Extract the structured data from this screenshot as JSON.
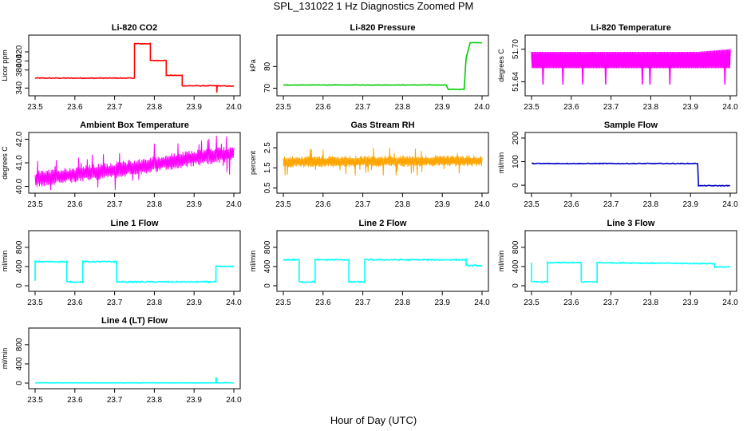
{
  "figure": {
    "title": "SPL_131022  1 Hz Diagnostics Zoomed PM",
    "xlabel": "Hour of Day (UTC)"
  },
  "chart_data": [
    {
      "type": "line",
      "title": "Li-820 CO2",
      "ylabel": "Licor ppm",
      "color": "#ff0000",
      "xlim": [
        23.5,
        24.0
      ],
      "ylim": [
        330,
        450
      ],
      "xticks": [
        "23.5",
        "23.6",
        "23.7",
        "23.8",
        "23.9",
        "24.0"
      ],
      "yticks": [
        "340",
        "380",
        "400",
        "420"
      ],
      "noise": 0.8,
      "series": [
        {
          "name": "CO2",
          "x": [
            23.5,
            23.75,
            23.75,
            23.79,
            23.79,
            23.83,
            23.83,
            23.87,
            23.87,
            23.957,
            23.957,
            23.958,
            23.96,
            24.0
          ],
          "y": [
            362,
            362,
            438,
            438,
            401,
            401,
            368,
            368,
            345,
            345,
            330,
            345,
            345,
            344
          ]
        }
      ]
    },
    {
      "type": "line",
      "title": "Li-820 Pressure",
      "ylabel": "kPa",
      "color": "#00cc00",
      "xlim": [
        23.5,
        24.0
      ],
      "ylim": [
        68,
        93
      ],
      "xticks": [
        "23.5",
        "23.6",
        "23.7",
        "23.8",
        "23.9",
        "24.0"
      ],
      "yticks": [
        "70",
        "80"
      ],
      "noise": 0.1,
      "series": [
        {
          "name": "Pressure",
          "x": [
            23.5,
            23.91,
            23.915,
            23.955,
            23.96,
            23.97,
            24.0
          ],
          "y": [
            71.5,
            71.5,
            69.5,
            69.5,
            84,
            91,
            91
          ]
        }
      ]
    },
    {
      "type": "line",
      "title": "Li-820 Temperature",
      "ylabel": "degrees C",
      "color": "#ff00ff",
      "xlim": [
        23.5,
        24.0
      ],
      "ylim": [
        51.62,
        51.72
      ],
      "xticks": [
        "23.5",
        "23.6",
        "23.7",
        "23.8",
        "23.9",
        "24.0"
      ],
      "yticks": [
        "51.64",
        "51.70"
      ],
      "noise": 0,
      "osc": [
        51.665,
        51.695
      ],
      "osc_points": 260,
      "series": [
        {
          "name": "Temp",
          "x": [
            23.5,
            23.91,
            23.92,
            24.0
          ],
          "y": [
            51.68,
            51.68,
            51.695,
            51.7
          ]
        }
      ]
    },
    {
      "type": "line",
      "title": "Ambient Box Temperature",
      "ylabel": "degrees C",
      "color": "#ff00ff",
      "xlim": [
        23.5,
        24.0
      ],
      "ylim": [
        39.85,
        42.15
      ],
      "xticks": [
        "23.5",
        "23.6",
        "23.7",
        "23.8",
        "23.9",
        "24.0"
      ],
      "yticks": [
        "40.0",
        "41.0",
        "42.0"
      ],
      "noise": 0.35,
      "dense": 320,
      "series": [
        {
          "name": "AmbientT",
          "x": [
            23.5,
            23.6,
            23.75,
            23.9,
            24.0
          ],
          "y": [
            40.3,
            40.5,
            40.8,
            41.2,
            41.4
          ]
        }
      ]
    },
    {
      "type": "line",
      "title": "Gas Stream RH",
      "ylabel": "percent",
      "color": "#ffa500",
      "xlim": [
        23.5,
        24.0
      ],
      "ylim": [
        0.4,
        3.1
      ],
      "xticks": [
        "23.5",
        "23.6",
        "23.7",
        "23.8",
        "23.9",
        "24.0"
      ],
      "yticks": [
        "0.5",
        "1.5",
        "2.5"
      ],
      "noise": 0.28,
      "dense": 340,
      "series": [
        {
          "name": "RH",
          "x": [
            23.5,
            24.0
          ],
          "y": [
            1.8,
            1.85
          ]
        }
      ]
    },
    {
      "type": "line",
      "title": "Sample Flow",
      "ylabel": "ml/min",
      "color": "#0000cc",
      "xlim": [
        23.5,
        24.0
      ],
      "ylim": [
        -20,
        210
      ],
      "xticks": [
        "23.5",
        "23.6",
        "23.7",
        "23.8",
        "23.9",
        "24.0"
      ],
      "yticks": [
        "0",
        "100",
        "200"
      ],
      "noise": 1.5,
      "series": [
        {
          "name": "SampleFlow",
          "x": [
            23.5,
            23.918,
            23.92,
            24.0
          ],
          "y": [
            92,
            92,
            -2,
            -2
          ]
        }
      ]
    },
    {
      "type": "line",
      "title": "Line 1 Flow",
      "ylabel": "ml/min",
      "color": "#00ffff",
      "xlim": [
        23.5,
        24.0
      ],
      "ylim": [
        -50,
        1080
      ],
      "xticks": [
        "23.5",
        "23.6",
        "23.7",
        "23.8",
        "23.9",
        "24.0"
      ],
      "yticks": [
        "0",
        "400",
        "800"
      ],
      "noise": 12,
      "series": [
        {
          "name": "Line1",
          "x": [
            23.5,
            23.5,
            23.58,
            23.58,
            23.62,
            23.62,
            23.705,
            23.705,
            23.955,
            23.955,
            24.0
          ],
          "y": [
            100,
            500,
            500,
            80,
            80,
            500,
            500,
            80,
            80,
            400,
            400
          ]
        }
      ]
    },
    {
      "type": "line",
      "title": "Line 2 Flow",
      "ylabel": "ml/min",
      "color": "#00ffff",
      "xlim": [
        23.5,
        24.0
      ],
      "ylim": [
        -50,
        1080
      ],
      "xticks": [
        "23.5",
        "23.6",
        "23.7",
        "23.8",
        "23.9",
        "24.0"
      ],
      "yticks": [
        "0",
        "400",
        "800"
      ],
      "noise": 12,
      "series": [
        {
          "name": "Line2",
          "x": [
            23.5,
            23.54,
            23.54,
            23.58,
            23.58,
            23.665,
            23.665,
            23.705,
            23.705,
            23.96,
            23.96,
            24.0
          ],
          "y": [
            540,
            540,
            80,
            80,
            540,
            540,
            80,
            80,
            540,
            540,
            420,
            420
          ]
        }
      ]
    },
    {
      "type": "line",
      "title": "Line 3 Flow",
      "ylabel": "ml/min",
      "color": "#00ffff",
      "xlim": [
        23.5,
        24.0
      ],
      "ylim": [
        -50,
        1080
      ],
      "xticks": [
        "23.5",
        "23.6",
        "23.7",
        "23.8",
        "23.9",
        "24.0"
      ],
      "yticks": [
        "0",
        "400",
        "800"
      ],
      "noise": 10,
      "series": [
        {
          "name": "Line3",
          "x": [
            23.5,
            23.5,
            23.54,
            23.54,
            23.625,
            23.625,
            23.665,
            23.665,
            23.96,
            23.96,
            24.0
          ],
          "y": [
            480,
            80,
            80,
            480,
            480,
            80,
            80,
            480,
            460,
            390,
            390
          ]
        }
      ]
    },
    {
      "type": "line",
      "title": "Line 4 (LT) Flow",
      "ylabel": "ml/min",
      "color": "#00ffff",
      "xlim": [
        23.5,
        24.0
      ],
      "ylim": [
        -50,
        1080
      ],
      "xticks": [
        "23.5",
        "23.6",
        "23.7",
        "23.8",
        "23.9",
        "24.0"
      ],
      "yticks": [
        "0",
        "400",
        "800"
      ],
      "noise": 2,
      "series": [
        {
          "name": "Line4",
          "x": [
            23.5,
            23.955,
            23.955,
            23.956,
            23.956,
            24.0
          ],
          "y": [
            5,
            5,
            110,
            110,
            5,
            5
          ]
        }
      ]
    }
  ]
}
